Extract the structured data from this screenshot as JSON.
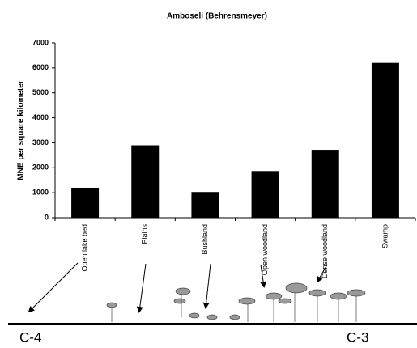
{
  "chart_data": {
    "type": "bar",
    "title": "Amboseli (Behrensmeyer)",
    "y_label": "MNE per square kilometer",
    "categories": [
      "Open lake bed",
      "Plains",
      "Bushland",
      "Open woodland",
      "Dense woodland",
      "Swamp"
    ],
    "values": [
      1200,
      2900,
      1030,
      1870,
      2720,
      6200
    ],
    "color": "#000000",
    "ylim": [
      0,
      7000
    ],
    "yticks": [
      0,
      1000,
      2000,
      3000,
      4000,
      5000,
      6000,
      7000
    ],
    "annotations": [
      "C-4",
      "C-3"
    ]
  }
}
